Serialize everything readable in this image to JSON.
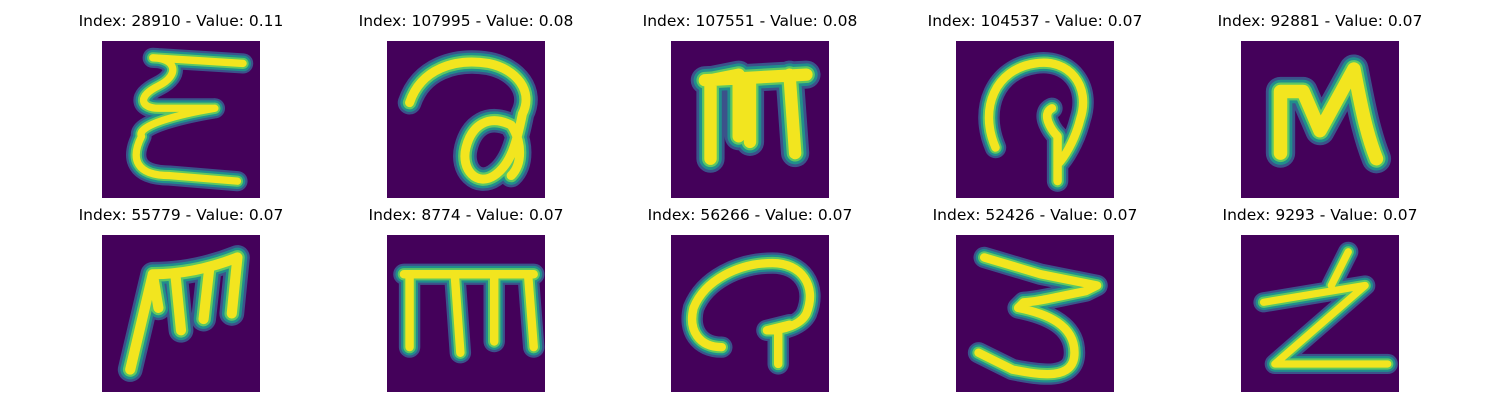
{
  "colors": {
    "background": "#44015a",
    "stroke_core": "#f2e51f",
    "stroke_mid": "#5dc862",
    "stroke_edge": "#218e8c",
    "stroke_halo": "#3b528b"
  },
  "panels": [
    {
      "title": "Index: 28910 - Value: 0.11",
      "glyph": "handwritten-E-like"
    },
    {
      "title": "Index: 107995 - Value: 0.08",
      "glyph": "handwritten-a-like"
    },
    {
      "title": "Index: 107551 - Value: 0.08",
      "glyph": "handwritten-m-like"
    },
    {
      "title": "Index: 104537 - Value: 0.07",
      "glyph": "handwritten-hook"
    },
    {
      "title": "Index: 92881 - Value: 0.07",
      "glyph": "handwritten-N-like"
    },
    {
      "title": "Index: 55779 - Value: 0.07",
      "glyph": "handwritten-m-like"
    },
    {
      "title": "Index: 8774 - Value: 0.07",
      "glyph": "handwritten-m-like"
    },
    {
      "title": "Index: 56266 - Value: 0.07",
      "glyph": "handwritten-hook"
    },
    {
      "title": "Index: 52426 - Value: 0.07",
      "glyph": "handwritten-3-like"
    },
    {
      "title": "Index: 9293 - Value: 0.07",
      "glyph": "handwritten-Z-like"
    }
  ]
}
